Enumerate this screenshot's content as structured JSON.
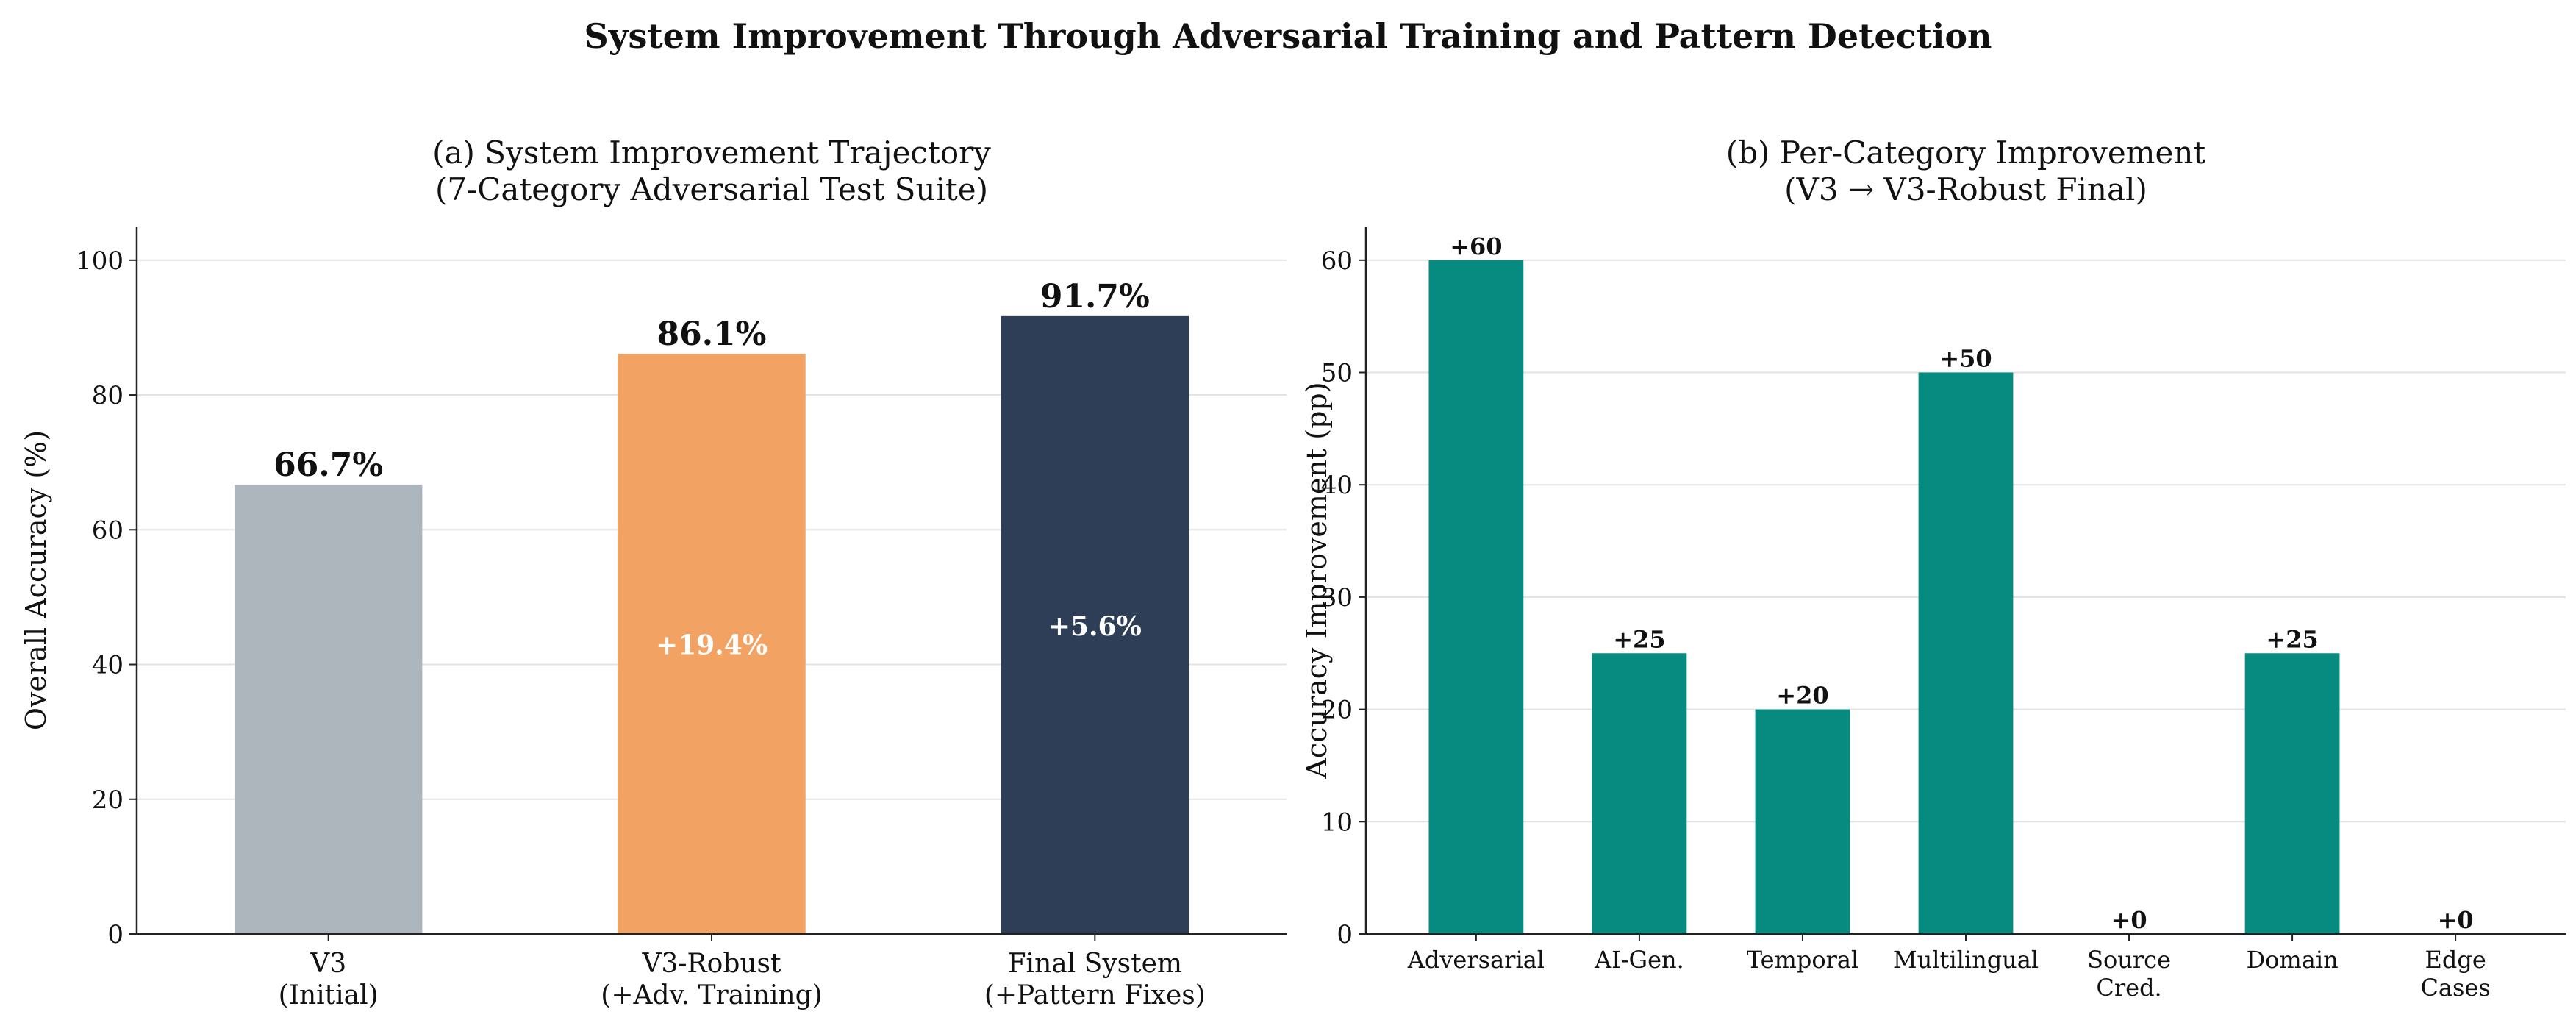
{
  "figure": {
    "suptitle": "System Improvement Through Adversarial Training and Pattern Detection"
  },
  "chart_data": [
    {
      "type": "bar",
      "title": "(a) System Improvement Trajectory\n(7-Category Adversarial Test Suite)",
      "xlabel": "",
      "ylabel": "Overall Accuracy (%)",
      "categories": [
        "V3\n(Initial)",
        "V3-Robust\n(+Adv. Training)",
        "Final System\n(+Pattern Fixes)"
      ],
      "values": [
        66.7,
        86.1,
        91.7
      ],
      "value_labels": [
        "66.7%",
        "86.1%",
        "91.7%"
      ],
      "delta_labels": [
        "",
        "+19.4%",
        "+5.6%"
      ],
      "bar_colors": [
        "#adb5bd",
        "#f2a262",
        "#2d3e56"
      ],
      "ylim": [
        0,
        105
      ],
      "yticks": [
        0,
        20,
        40,
        60,
        80,
        100
      ],
      "grid": true
    },
    {
      "type": "bar",
      "title": "(b) Per-Category Improvement\n(V3 → V3-Robust Final)",
      "xlabel": "",
      "ylabel": "Accuracy Improvement (pp)",
      "categories": [
        "Adversarial",
        "AI-Gen.",
        "Temporal",
        "Multilingual",
        "Source\nCred.",
        "Domain",
        "Edge\nCases"
      ],
      "values": [
        60,
        25,
        20,
        50,
        0,
        25,
        0
      ],
      "value_labels": [
        "+60",
        "+25",
        "+20",
        "+50",
        "+0",
        "+25",
        "+0"
      ],
      "bar_color": "#078b80",
      "ylim": [
        0,
        63
      ],
      "yticks": [
        0,
        10,
        20,
        30,
        40,
        50,
        60
      ],
      "grid": true
    }
  ]
}
